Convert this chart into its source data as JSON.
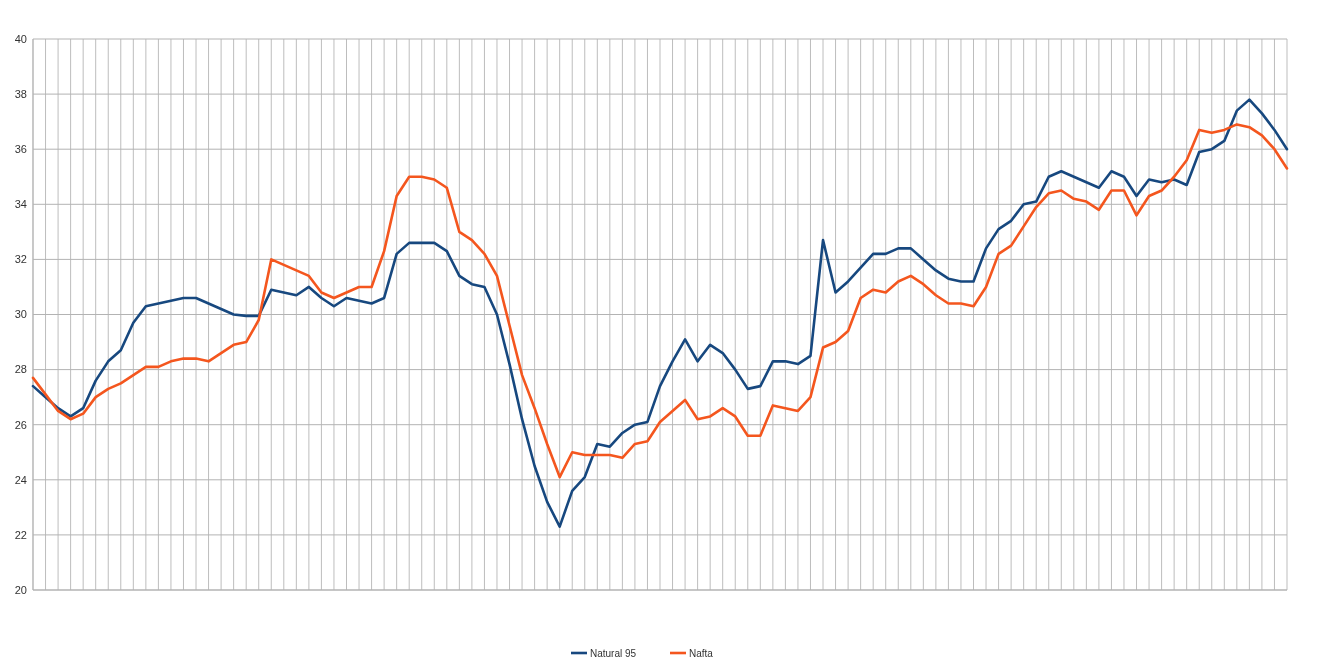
{
  "chart_data": {
    "type": "line",
    "categories": [
      null,
      null,
      null,
      null,
      null,
      null,
      null,
      null,
      null,
      null,
      null,
      null,
      null,
      null,
      null,
      null,
      null,
      null,
      null,
      null,
      null,
      null,
      null,
      null,
      null,
      null,
      null,
      null,
      null,
      null,
      null,
      null,
      null,
      null,
      null,
      null,
      null,
      null,
      null,
      null,
      null,
      null,
      null,
      null,
      null,
      null,
      null,
      null,
      null,
      null,
      null,
      null,
      null,
      null,
      null,
      null,
      null,
      null,
      null,
      null,
      null,
      null,
      null,
      null,
      null,
      null,
      null,
      null,
      null,
      null,
      null,
      null,
      null,
      null,
      null,
      null,
      null,
      null,
      null,
      null,
      null,
      null,
      null,
      null,
      null,
      null,
      null,
      null,
      null,
      null,
      null,
      null,
      null,
      null,
      null,
      null,
      null,
      null,
      null,
      null,
      null
    ],
    "series": [
      {
        "name": "Natural 95",
        "color": "#17487f",
        "values": [
          27.4,
          27.0,
          26.6,
          26.3,
          26.6,
          27.6,
          28.3,
          28.7,
          29.7,
          30.3,
          30.4,
          30.5,
          30.6,
          30.6,
          30.4,
          30.2,
          30.0,
          29.95,
          29.95,
          30.9,
          30.8,
          30.7,
          31.0,
          30.6,
          30.3,
          30.6,
          30.5,
          30.4,
          30.6,
          32.2,
          32.6,
          32.6,
          32.6,
          32.3,
          31.4,
          31.1,
          31.0,
          30.0,
          28.2,
          26.2,
          24.5,
          23.2,
          22.3,
          23.6,
          24.1,
          25.3,
          25.2,
          25.7,
          26.0,
          26.1,
          27.4,
          28.3,
          29.1,
          28.3,
          28.9,
          28.6,
          28.0,
          27.3,
          27.4,
          28.3,
          28.3,
          28.2,
          28.5,
          32.7,
          30.8,
          31.2,
          31.7,
          32.2,
          32.2,
          32.4,
          32.4,
          32.0,
          31.6,
          31.3,
          31.2,
          31.2,
          32.4,
          33.1,
          33.4,
          34.0,
          34.1,
          35.0,
          35.2,
          35.0,
          34.8,
          34.6,
          35.2,
          35.0,
          34.3,
          34.9,
          34.8,
          34.9,
          34.7,
          35.9,
          36.0,
          36.3,
          37.4,
          37.8,
          37.3,
          36.7,
          36.0
        ]
      },
      {
        "name": "Nafta",
        "color": "#f4561e",
        "values": [
          27.7,
          27.1,
          26.5,
          26.2,
          26.4,
          27.0,
          27.3,
          27.5,
          27.8,
          28.1,
          28.1,
          28.3,
          28.4,
          28.4,
          28.3,
          28.6,
          28.9,
          29.0,
          29.8,
          32.0,
          31.8,
          31.6,
          31.4,
          30.8,
          30.6,
          30.8,
          31.0,
          31.0,
          32.3,
          34.3,
          35.0,
          35.0,
          34.9,
          34.6,
          33.0,
          32.7,
          32.2,
          31.4,
          29.6,
          27.8,
          26.6,
          25.3,
          24.1,
          25.0,
          24.9,
          24.9,
          24.9,
          24.8,
          25.3,
          25.4,
          26.1,
          26.5,
          26.9,
          26.2,
          26.3,
          26.6,
          26.3,
          25.6,
          25.6,
          26.7,
          26.6,
          26.5,
          27.0,
          28.8,
          29.0,
          29.4,
          30.6,
          30.9,
          30.8,
          31.2,
          31.4,
          31.1,
          30.7,
          30.4,
          30.4,
          30.3,
          31.0,
          32.2,
          32.5,
          33.2,
          33.9,
          34.4,
          34.5,
          34.2,
          34.1,
          33.8,
          34.5,
          34.5,
          33.6,
          34.3,
          34.5,
          35.0,
          35.6,
          36.7,
          36.6,
          36.7,
          36.9,
          36.8,
          36.5,
          36.0,
          35.3
        ]
      }
    ],
    "ylim": [
      20,
      40
    ],
    "yticks": [
      20,
      22,
      24,
      26,
      28,
      30,
      32,
      34,
      36,
      38,
      40
    ],
    "grid": true,
    "legend": "bottom",
    "tick_labels": "y",
    "marker": "none",
    "line_style": "solid"
  }
}
